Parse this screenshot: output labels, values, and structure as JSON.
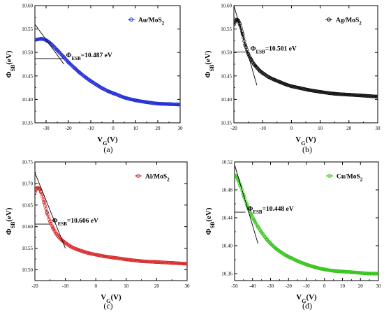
{
  "chart_data": [
    {
      "type": "scatter",
      "panel_label": "(a)",
      "xlabel": "V_G(V)",
      "ylabel": "Φ_SB(eV)",
      "xlim": [
        -35,
        30
      ],
      "ylim": [
        10.35,
        10.6
      ],
      "xticks": [
        -30,
        -20,
        -10,
        0,
        10,
        20,
        30
      ],
      "xtick_labels": [
        "-30",
        "-20",
        "-10",
        "0",
        "10",
        "20",
        "30"
      ],
      "yticks": [
        10.35,
        10.4,
        10.45,
        10.5,
        10.55,
        10.6
      ],
      "ytick_labels": [
        "10.35",
        "10.40",
        "10.45",
        "10.50",
        "10.55",
        "10.60"
      ],
      "series": [
        {
          "name": "Au/MoS_2",
          "color": "#1f2bd6",
          "x": [
            -35,
            -32,
            -30,
            -28,
            -25,
            -22,
            -20,
            -17,
            -15,
            -12,
            -10,
            -7,
            -5,
            -2,
            0,
            5,
            10,
            15,
            20,
            25,
            30
          ],
          "y": [
            10.527,
            10.529,
            10.526,
            10.519,
            10.505,
            10.49,
            10.479,
            10.466,
            10.457,
            10.446,
            10.439,
            10.43,
            10.424,
            10.417,
            10.413,
            10.404,
            10.398,
            10.394,
            10.391,
            10.39,
            10.389
          ]
        }
      ],
      "tangent_line": {
        "x": [
          -35,
          -22
        ],
        "y": [
          10.56,
          10.475
        ]
      },
      "annotation": {
        "label": "Φ_ESB=10.487 eV",
        "value": 10.487,
        "x_from": -35,
        "x_to": -22
      },
      "legend_position": "top-right",
      "grid": false
    },
    {
      "type": "scatter",
      "panel_label": "(b)",
      "xlabel": "V_G(V)",
      "ylabel": "Φ_SB(eV)",
      "xlim": [
        -20,
        30
      ],
      "ylim": [
        10.35,
        10.6
      ],
      "xticks": [
        -20,
        -10,
        0,
        10,
        20,
        30
      ],
      "xtick_labels": [
        "-20",
        "-10",
        "0",
        "10",
        "20",
        "30"
      ],
      "yticks": [
        10.35,
        10.4,
        10.45,
        10.5,
        10.55,
        10.6
      ],
      "ytick_labels": [
        "10.35",
        "10.40",
        "10.45",
        "10.50",
        "10.55",
        "10.60"
      ],
      "series": [
        {
          "name": "Ag/MoS_2",
          "color": "#111111",
          "x": [
            -20,
            -19.5,
            -19,
            -18.5,
            -18,
            -17,
            -16,
            -15,
            -14,
            -13,
            -12,
            -11,
            -10,
            -8,
            -6,
            -4,
            -2,
            0,
            3,
            6,
            10,
            15,
            20,
            25,
            30
          ],
          "y": [
            10.56,
            10.567,
            10.57,
            10.568,
            10.561,
            10.54,
            10.515,
            10.497,
            10.485,
            10.475,
            10.468,
            10.461,
            10.456,
            10.448,
            10.442,
            10.437,
            10.432,
            10.428,
            10.424,
            10.42,
            10.416,
            10.412,
            10.41,
            10.408,
            10.406
          ]
        }
      ],
      "tangent_line": {
        "x": [
          -20,
          -12
        ],
        "y": [
          10.6,
          10.43
        ]
      },
      "annotation": {
        "label": "Φ_ESB=10.501 eV",
        "value": 10.501,
        "x_from": -20,
        "x_to": -15
      },
      "legend_position": "top-right",
      "grid": false
    },
    {
      "type": "scatter",
      "panel_label": "(c)",
      "xlabel": "V_G(V)",
      "ylabel": "Φ_SB(eV)",
      "xlim": [
        -20,
        30
      ],
      "ylim": [
        10.475,
        10.75
      ],
      "xticks": [
        -20,
        -10,
        0,
        10,
        20,
        30
      ],
      "xtick_labels": [
        "-20",
        "-10",
        "0",
        "10",
        "20",
        "30"
      ],
      "yticks": [
        10.5,
        10.55,
        10.6,
        10.65,
        10.7,
        10.75
      ],
      "ytick_labels": [
        "10.50",
        "10.55",
        "10.60",
        "10.65",
        "10.70",
        "10.75"
      ],
      "series": [
        {
          "name": "Al/MoS_2",
          "color": "#d62a2a",
          "x": [
            -20,
            -19.5,
            -19,
            -18.5,
            -18,
            -17,
            -16,
            -15,
            -14,
            -13,
            -12,
            -11,
            -10,
            -8,
            -6,
            -4,
            -2,
            0,
            3,
            6,
            10,
            15,
            20,
            25,
            30
          ],
          "y": [
            10.68,
            10.688,
            10.69,
            10.688,
            10.68,
            10.657,
            10.632,
            10.612,
            10.596,
            10.584,
            10.575,
            10.568,
            10.562,
            10.553,
            10.547,
            10.542,
            10.538,
            10.535,
            10.531,
            10.528,
            10.524,
            10.52,
            10.518,
            10.516,
            10.514
          ]
        }
      ],
      "tangent_line": {
        "x": [
          -20,
          -10
        ],
        "y": [
          10.725,
          10.55
        ]
      },
      "annotation": {
        "label": "Φ_ESB=10.606 eV",
        "value": 10.606,
        "x_from": -20,
        "x_to": -15
      },
      "legend_position": "top-right",
      "grid": false
    },
    {
      "type": "scatter",
      "panel_label": "(d)",
      "xlabel": "V_G(V)",
      "ylabel": "Φ_SB(eV)",
      "xlim": [
        -50,
        30
      ],
      "ylim": [
        10.35,
        10.52
      ],
      "xticks": [
        -50,
        -40,
        -30,
        -20,
        -10,
        0,
        10,
        20,
        30
      ],
      "xtick_labels": [
        "-50",
        "-40",
        "-30",
        "-20",
        "-10",
        "0",
        "10",
        "20",
        "30"
      ],
      "yticks": [
        10.36,
        10.4,
        10.44,
        10.48,
        10.52
      ],
      "ytick_labels": [
        "10.36",
        "10.40",
        "10.44",
        "10.48",
        "10.52"
      ],
      "series": [
        {
          "name": "Cu/MoS_2",
          "color": "#35c31a",
          "x": [
            -50,
            -49,
            -48,
            -47,
            -45,
            -43,
            -41,
            -39,
            -37,
            -35,
            -32,
            -30,
            -27,
            -25,
            -22,
            -20,
            -15,
            -10,
            -5,
            0,
            5,
            10,
            15,
            20,
            25,
            30
          ],
          "y": [
            10.501,
            10.499,
            10.494,
            10.487,
            10.472,
            10.458,
            10.446,
            10.436,
            10.427,
            10.419,
            10.409,
            10.403,
            10.396,
            10.392,
            10.387,
            10.384,
            10.378,
            10.373,
            10.369,
            10.366,
            10.364,
            10.363,
            10.362,
            10.361,
            10.36,
            10.36
          ]
        }
      ],
      "tangent_line": {
        "x": [
          -50,
          -37
        ],
        "y": [
          10.516,
          10.403
        ]
      },
      "annotation": {
        "label": "Φ_ESB=10.448 eV",
        "value": 10.448,
        "x_from": -50,
        "x_to": -44
      },
      "legend_position": "top-right",
      "grid": false
    }
  ]
}
